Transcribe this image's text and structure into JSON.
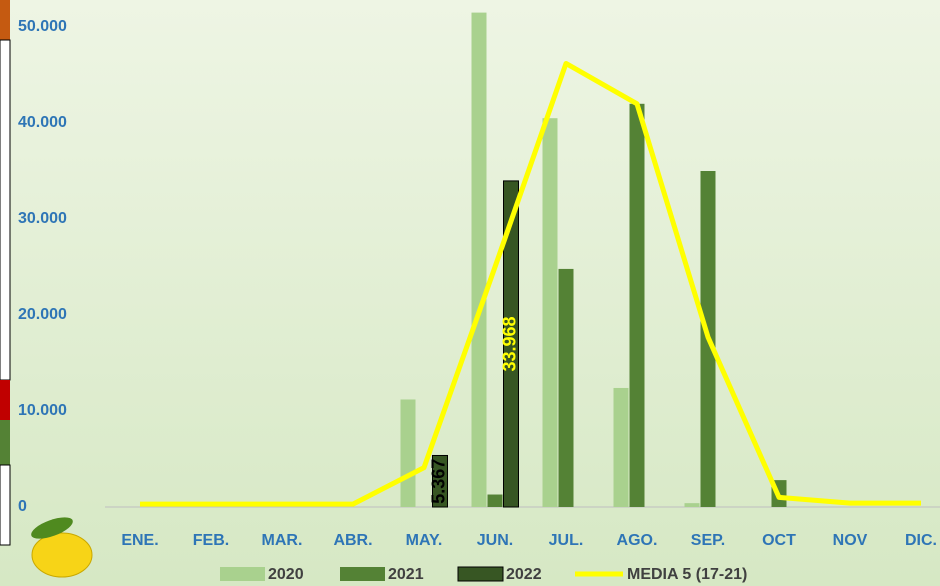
{
  "chart_data": {
    "type": "bar",
    "categories": [
      "ENE.",
      "FEB.",
      "MAR.",
      "ABR.",
      "MAY.",
      "JUN.",
      "JUL.",
      "AGO.",
      "SEP.",
      "OCT",
      "NOV",
      "DIC."
    ],
    "series": [
      {
        "name": "2020",
        "color": "#a9d18e",
        "values": [
          0,
          0,
          0,
          0,
          11200,
          51500,
          40500,
          12400,
          400,
          0,
          0,
          0
        ]
      },
      {
        "name": "2021",
        "color": "#548235",
        "values": [
          0,
          0,
          0,
          0,
          0,
          1300,
          24800,
          42000,
          35000,
          2800,
          0,
          0
        ]
      },
      {
        "name": "2022",
        "color": "#375623",
        "values": [
          null,
          null,
          null,
          null,
          5367,
          33968,
          null,
          null,
          null,
          null,
          null,
          null
        ],
        "value_labels": [
          null,
          null,
          null,
          null,
          "5.367",
          "33.968",
          null,
          null,
          null,
          null,
          null,
          null
        ],
        "label_colors": [
          "#000000",
          "#ffff00"
        ]
      },
      {
        "name": "MEDIA 5 (17-21)",
        "type": "line",
        "color": "#ffff00",
        "values": [
          300,
          300,
          300,
          300,
          4100,
          25000,
          46200,
          42000,
          17700,
          1000,
          400,
          400
        ]
      }
    ],
    "ylim": [
      0,
      52500
    ],
    "yticks": [
      0,
      {
        "value": 10000,
        "label": "10.000"
      },
      {
        "value": 20000,
        "label": "20.000"
      },
      {
        "value": 30000,
        "label": "30.000"
      },
      {
        "value": 40000,
        "label": "40.000"
      },
      {
        "value": 50000,
        "label": "50.000"
      }
    ]
  }
}
